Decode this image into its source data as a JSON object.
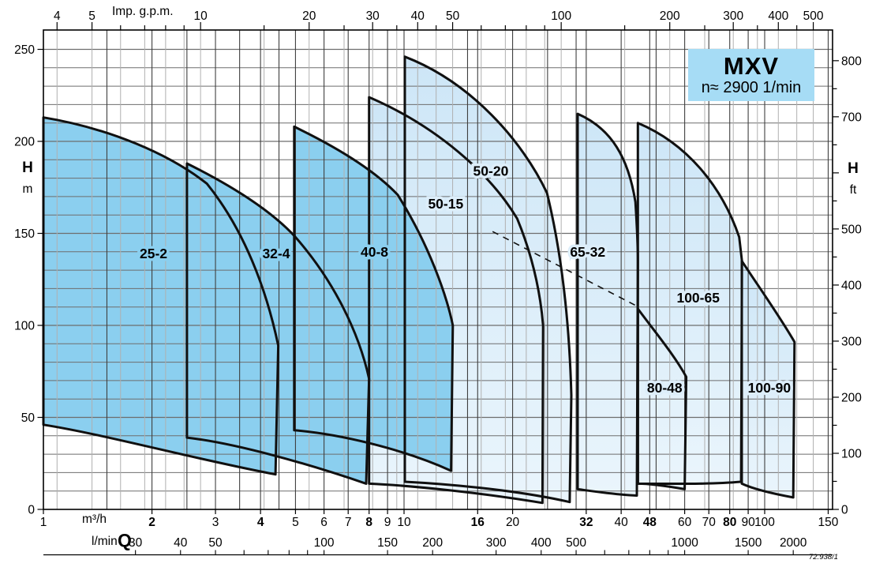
{
  "page": {
    "background": "#ffffff"
  },
  "title_box": {
    "title": "MXV",
    "speed": "n≈ 2900 1/min",
    "bg": "#a6dcf5"
  },
  "footer_note": "72.938/1",
  "chart_data": {
    "type": "area",
    "description": "Pump coverage chart: head H versus flow Q, logarithmic x axis, linear y axis",
    "x_axis_top": {
      "label": "Imp. g.p.m.",
      "labeled_ticks": [
        4,
        5,
        10,
        20,
        30,
        40,
        50,
        100,
        200,
        300,
        400,
        500
      ],
      "minor_ticks": [
        6,
        7,
        8,
        9,
        15,
        25,
        35,
        45,
        60,
        70,
        80,
        90,
        150,
        250,
        350,
        450
      ]
    },
    "x_axis_bottom": {
      "label": "Q",
      "unit_primary": "m³/h",
      "unit_secondary": "l/min",
      "scale": "log",
      "m3h_ticks": [
        1,
        2,
        3,
        4,
        5,
        6,
        7,
        8,
        9,
        10,
        16,
        20,
        32,
        40,
        48,
        60,
        70,
        80,
        90,
        100,
        150
      ],
      "m3h_bold": [
        2,
        4,
        8,
        16,
        32,
        48,
        80
      ],
      "lmin_ticks": [
        30,
        40,
        50,
        100,
        150,
        200,
        300,
        400,
        500,
        1000,
        1500,
        2000
      ],
      "lmin_minor": [
        60,
        70,
        80,
        90,
        600,
        700,
        800,
        900
      ]
    },
    "y_axis_left": {
      "label": "H",
      "unit": "m",
      "min": 0,
      "max": 260,
      "labeled_ticks": [
        250,
        200,
        150,
        100,
        50,
        0
      ],
      "grid_step": 10
    },
    "y_axis_right": {
      "label": "H",
      "unit": "ft",
      "labeled_ticks": [
        800,
        700,
        500,
        400,
        300,
        200,
        100,
        0
      ],
      "minor_step": 50
    },
    "x_grid_m3h": [
      1.5,
      2,
      2.5,
      3,
      3.5,
      4,
      4.5,
      5,
      6,
      7,
      8,
      9,
      10,
      15,
      16,
      20,
      25,
      30,
      32,
      40,
      48,
      50,
      60,
      70,
      80,
      90,
      100,
      150
    ],
    "x_grid_gpm": [
      4,
      5,
      6,
      7,
      8,
      9,
      10,
      15,
      20,
      25,
      30,
      35,
      40,
      45,
      50,
      60,
      70,
      80,
      90,
      100,
      150,
      200,
      250,
      300,
      350,
      400,
      450,
      500
    ],
    "colors": {
      "dark_fill": "#8bcfef",
      "light_fill_top": "#cde6f7",
      "light_fill_bottom": "#eaf5fc",
      "outline": "#101010",
      "grid_dark": "#3f3f3f",
      "grid_light": "#b0b0b0",
      "grid_h": "#6e6e6e"
    },
    "dashed_line": {
      "from": [
        17.6,
        151
      ],
      "to": [
        44.7,
        110
      ]
    },
    "envelopes": [
      {
        "name": "50-15",
        "group": "light",
        "q_range": [
          8,
          24.3
        ],
        "h_range": [
          3.5,
          224
        ],
        "label_pos": [
          13.05,
          166
        ],
        "outline": [
          [
            "M",
            8.0,
            14
          ],
          [
            "L",
            8.0,
            224
          ],
          [
            "C",
            12.4,
            208,
            17.4,
            182,
            20.6,
            158
          ],
          [
            "C",
            22.8,
            137,
            23.9,
            117,
            24.3,
            100
          ],
          [
            "L",
            24.2,
            3.5
          ],
          [
            "C",
            16.4,
            9,
            10.4,
            13,
            8.0,
            14
          ],
          [
            "Z"
          ]
        ]
      },
      {
        "name": "50-20",
        "group": "light",
        "q_range": [
          10,
          29.1
        ],
        "h_range": [
          4,
          246
        ],
        "label_pos": [
          17.4,
          184
        ],
        "outline": [
          [
            "M",
            10.05,
            15
          ],
          [
            "L",
            10.05,
            246
          ],
          [
            "C",
            15.4,
            232,
            21.3,
            200,
            24.9,
            172
          ],
          [
            "C",
            27.7,
            135,
            28.8,
            95,
            29.1,
            62
          ],
          [
            "L",
            28.8,
            4
          ],
          [
            "C",
            20.1,
            11,
            12.7,
            14,
            10.05,
            15
          ],
          [
            "Z"
          ]
        ]
      },
      {
        "name": "65-32",
        "group": "light",
        "q_range": [
          30.3,
          44.5
        ],
        "h_range": [
          7.5,
          215
        ],
        "label_pos": [
          32.3,
          140
        ],
        "outline": [
          [
            "M",
            30.3,
            11
          ],
          [
            "L",
            30.3,
            215
          ],
          [
            "C",
            37.6,
            207,
            41.9,
            191,
            43.8,
            167
          ],
          [
            "C",
            44.3,
            152,
            44.5,
            143,
            44.5,
            135
          ],
          [
            "L",
            44.2,
            7.5
          ],
          [
            "C",
            38.5,
            8,
            33.1,
            10,
            30.3,
            11
          ],
          [
            "Z"
          ]
        ]
      },
      {
        "name": "80-48",
        "group": "light",
        "q_range": [
          44.5,
          60.6
        ],
        "h_range": [
          11,
          109
        ],
        "label_pos": [
          52.8,
          66
        ],
        "outline": [
          [
            "M",
            44.5,
            109
          ],
          [
            "C",
            49.4,
            97,
            56.1,
            84,
            60.6,
            72
          ],
          [
            "L",
            60,
            11
          ],
          [
            "C",
            52.3,
            13,
            47.7,
            14,
            44.5,
            14
          ],
          [
            "Z"
          ]
        ]
      },
      {
        "name": "100-65",
        "group": "light",
        "q_range": [
          44.5,
          86.5
        ],
        "h_range": [
          13,
          210
        ],
        "label_pos": [
          65.4,
          115
        ],
        "outline": [
          [
            "M",
            44.5,
            14
          ],
          [
            "L",
            44.5,
            210
          ],
          [
            "C",
            60.6,
            199,
            76,
            176,
            85,
            148
          ],
          [
            "L",
            86.5,
            135
          ],
          [
            "L",
            86,
            15
          ],
          [
            "C",
            70,
            13.5,
            55,
            14,
            44.5,
            14
          ],
          [
            "Z"
          ]
        ]
      },
      {
        "name": "100-90",
        "group": "light",
        "q_range": [
          86.4,
          121
        ],
        "h_range": [
          6.5,
          135
        ],
        "label_pos": [
          103,
          66
        ],
        "outline": [
          [
            "M",
            86.4,
            14
          ],
          [
            "L",
            86.4,
            135
          ],
          [
            "C",
            97,
            120,
            110,
            105,
            121,
            91
          ],
          [
            "L",
            120,
            6.5
          ],
          [
            "C",
            105.6,
            8.5,
            93.2,
            11,
            86.4,
            14
          ],
          [
            "Z"
          ]
        ]
      },
      {
        "name": "25-2",
        "group": "dark",
        "q_range": [
          1,
          4.5
        ],
        "h_range": [
          19,
          213
        ],
        "label_pos": [
          2.02,
          139
        ],
        "outline": [
          [
            "M",
            1,
            46
          ],
          [
            "L",
            1,
            213
          ],
          [
            "C",
            1.53,
            207,
            2.24,
            193,
            2.84,
            177
          ],
          [
            "C",
            3.6,
            152,
            4.15,
            120,
            4.48,
            89
          ],
          [
            "L",
            4.4,
            19
          ],
          [
            "C",
            2.67,
            27,
            1.46,
            41,
            1,
            46
          ],
          [
            "Z"
          ]
        ]
      },
      {
        "name": "32-4",
        "group": "dark",
        "q_range": [
          2.5,
          8
        ],
        "h_range": [
          14,
          188
        ],
        "label_pos": [
          4.42,
          139
        ],
        "outline": [
          [
            "M",
            2.5,
            39
          ],
          [
            "L",
            2.5,
            188
          ],
          [
            "C",
            3.4,
            175,
            4.3,
            162,
            5.0,
            148
          ],
          [
            "C",
            6.4,
            124,
            7.5,
            96,
            8.0,
            71
          ],
          [
            "L",
            7.85,
            14
          ],
          [
            "C",
            5.4,
            25,
            3.4,
            36,
            2.5,
            39
          ],
          [
            "Z"
          ]
        ]
      },
      {
        "name": "40-8",
        "group": "dark",
        "q_range": [
          4.96,
          13.65
        ],
        "h_range": [
          21,
          208
        ],
        "label_pos": [
          8.28,
          140
        ],
        "outline": [
          [
            "M",
            4.96,
            43
          ],
          [
            "L",
            4.96,
            208
          ],
          [
            "C",
            6.8,
            195,
            8.4,
            183,
            9.6,
            171
          ],
          [
            "C",
            11.7,
            144,
            13.1,
            117,
            13.65,
            100
          ],
          [
            "L",
            13.5,
            21
          ],
          [
            "C",
            9.9,
            33,
            6.6,
            41,
            4.96,
            43
          ],
          [
            "Z"
          ]
        ]
      }
    ]
  }
}
